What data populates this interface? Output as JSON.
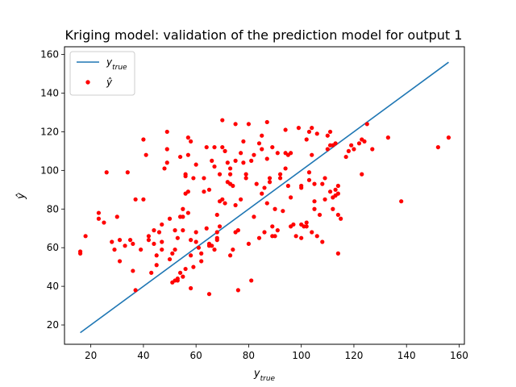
{
  "chart_data": {
    "type": "scatter",
    "title": "Kriging model: validation of the prediction model for output 1",
    "xlabel": {
      "base": "y",
      "sub": "true"
    },
    "ylabel": "ŷ",
    "xlim": [
      10,
      162
    ],
    "ylim": [
      10,
      164
    ],
    "xticks": [
      20,
      40,
      60,
      80,
      100,
      120,
      140,
      160
    ],
    "yticks": [
      20,
      40,
      60,
      80,
      100,
      120,
      140,
      160
    ],
    "grid": false,
    "legend_position": "top-left",
    "series": [
      {
        "name": "y_true",
        "legend": {
          "base": "y",
          "sub": "true"
        },
        "type": "line",
        "color": "#1f77b4",
        "x": [
          16,
          156
        ],
        "y": [
          16,
          156
        ]
      },
      {
        "name": "ŷ",
        "legend": {
          "base": "ŷ",
          "sub": ""
        },
        "type": "scatter",
        "color": "#ff0000",
        "points": [
          [
            16,
            58
          ],
          [
            16,
            57
          ],
          [
            18,
            66
          ],
          [
            23,
            75
          ],
          [
            23,
            78
          ],
          [
            25,
            73
          ],
          [
            26,
            99
          ],
          [
            28,
            63
          ],
          [
            29,
            59
          ],
          [
            30,
            76
          ],
          [
            31,
            64
          ],
          [
            31,
            53
          ],
          [
            33,
            61
          ],
          [
            34,
            99
          ],
          [
            35,
            64
          ],
          [
            36,
            62
          ],
          [
            36,
            48
          ],
          [
            37,
            85
          ],
          [
            37,
            38
          ],
          [
            39,
            59
          ],
          [
            40,
            85
          ],
          [
            40,
            116
          ],
          [
            41,
            108
          ],
          [
            42,
            66
          ],
          [
            42,
            64
          ],
          [
            43,
            47
          ],
          [
            44,
            69
          ],
          [
            44,
            62
          ],
          [
            45,
            56
          ],
          [
            45,
            51
          ],
          [
            46,
            68
          ],
          [
            47,
            72
          ],
          [
            47,
            59
          ],
          [
            47,
            63
          ],
          [
            48,
            101
          ],
          [
            49,
            104
          ],
          [
            49,
            111
          ],
          [
            49,
            120
          ],
          [
            50,
            75
          ],
          [
            50,
            54
          ],
          [
            51,
            57
          ],
          [
            51,
            42
          ],
          [
            52,
            59
          ],
          [
            52,
            43
          ],
          [
            52,
            69
          ],
          [
            53,
            65
          ],
          [
            53,
            43
          ],
          [
            53,
            44
          ],
          [
            54,
            76
          ],
          [
            54,
            107
          ],
          [
            54,
            47
          ],
          [
            55,
            76
          ],
          [
            55,
            80
          ],
          [
            55,
            69
          ],
          [
            55,
            45
          ],
          [
            56,
            88
          ],
          [
            56,
            97
          ],
          [
            56,
            49
          ],
          [
            56,
            98
          ],
          [
            57,
            89
          ],
          [
            57,
            117
          ],
          [
            57,
            108
          ],
          [
            57,
            78
          ],
          [
            58,
            115
          ],
          [
            58,
            64
          ],
          [
            58,
            56
          ],
          [
            58,
            39
          ],
          [
            59,
            50
          ],
          [
            59,
            96
          ],
          [
            60,
            68
          ],
          [
            60,
            63
          ],
          [
            60,
            103
          ],
          [
            61,
            60
          ],
          [
            62,
            57
          ],
          [
            62,
            53
          ],
          [
            63,
            96
          ],
          [
            63,
            89
          ],
          [
            64,
            70
          ],
          [
            64,
            112
          ],
          [
            65,
            90
          ],
          [
            65,
            62
          ],
          [
            65,
            61
          ],
          [
            65,
            36
          ],
          [
            66,
            61
          ],
          [
            66,
            105
          ],
          [
            67,
            112
          ],
          [
            67,
            59
          ],
          [
            67,
            102
          ],
          [
            68,
            65
          ],
          [
            68,
            64
          ],
          [
            68,
            68
          ],
          [
            68,
            77
          ],
          [
            69,
            98
          ],
          [
            69,
            71
          ],
          [
            69,
            84
          ],
          [
            70,
            85
          ],
          [
            70,
            126
          ],
          [
            70,
            112
          ],
          [
            71,
            110
          ],
          [
            71,
            83
          ],
          [
            72,
            104
          ],
          [
            72,
            94
          ],
          [
            73,
            93
          ],
          [
            73,
            56
          ],
          [
            73,
            98
          ],
          [
            73,
            101
          ],
          [
            74,
            92
          ],
          [
            74,
            59
          ],
          [
            75,
            105
          ],
          [
            75,
            124
          ],
          [
            75,
            68
          ],
          [
            75,
            82
          ],
          [
            76,
            69
          ],
          [
            76,
            38
          ],
          [
            77,
            109
          ],
          [
            77,
            85
          ],
          [
            78,
            115
          ],
          [
            78,
            104
          ],
          [
            79,
            98
          ],
          [
            79,
            96
          ],
          [
            80,
            62
          ],
          [
            80,
            124
          ],
          [
            81,
            105
          ],
          [
            81,
            43
          ],
          [
            82,
            108
          ],
          [
            82,
            76
          ],
          [
            83,
            93
          ],
          [
            84,
            65
          ],
          [
            84,
            114
          ],
          [
            85,
            111
          ],
          [
            85,
            118
          ],
          [
            85,
            88
          ],
          [
            86,
            68
          ],
          [
            86,
            91
          ],
          [
            87,
            83
          ],
          [
            87,
            106
          ],
          [
            87,
            125
          ],
          [
            88,
            96
          ],
          [
            88,
            94
          ],
          [
            89,
            112
          ],
          [
            89,
            71
          ],
          [
            89,
            66
          ],
          [
            90,
            66
          ],
          [
            90,
            80
          ],
          [
            91,
            109
          ],
          [
            91,
            69
          ],
          [
            92,
            96
          ],
          [
            92,
            98
          ],
          [
            93,
            79
          ],
          [
            94,
            101
          ],
          [
            94,
            121
          ],
          [
            94,
            109
          ],
          [
            95,
            108
          ],
          [
            95,
            92
          ],
          [
            96,
            109
          ],
          [
            96,
            86
          ],
          [
            96,
            71
          ],
          [
            97,
            72
          ],
          [
            98,
            66
          ],
          [
            99,
            122
          ],
          [
            100,
            92
          ],
          [
            100,
            91
          ],
          [
            100,
            65
          ],
          [
            100,
            72
          ],
          [
            101,
            71
          ],
          [
            102,
            116
          ],
          [
            102,
            71
          ],
          [
            102,
            73
          ],
          [
            103,
            120
          ],
          [
            103,
            99
          ],
          [
            103,
            95
          ],
          [
            104,
            122
          ],
          [
            104,
            108
          ],
          [
            104,
            68
          ],
          [
            105,
            80
          ],
          [
            105,
            84
          ],
          [
            105,
            93
          ],
          [
            106,
            119
          ],
          [
            106,
            66
          ],
          [
            107,
            77
          ],
          [
            108,
            93
          ],
          [
            108,
            63
          ],
          [
            109,
            85
          ],
          [
            109,
            96
          ],
          [
            110,
            118
          ],
          [
            110,
            111
          ],
          [
            111,
            113
          ],
          [
            111,
            120
          ],
          [
            111,
            89
          ],
          [
            112,
            80
          ],
          [
            112,
            86
          ],
          [
            112,
            113
          ],
          [
            113,
            114
          ],
          [
            113,
            90
          ],
          [
            113,
            87
          ],
          [
            114,
            92
          ],
          [
            114,
            88
          ],
          [
            114,
            77
          ],
          [
            114,
            57
          ],
          [
            115,
            75
          ],
          [
            117,
            107
          ],
          [
            118,
            110
          ],
          [
            119,
            113
          ],
          [
            120,
            111
          ],
          [
            122,
            114
          ],
          [
            123,
            116
          ],
          [
            123,
            98
          ],
          [
            124,
            115
          ],
          [
            125,
            124
          ],
          [
            127,
            111
          ],
          [
            133,
            117
          ],
          [
            138,
            84
          ],
          [
            152,
            112
          ],
          [
            156,
            117
          ]
        ]
      }
    ]
  }
}
